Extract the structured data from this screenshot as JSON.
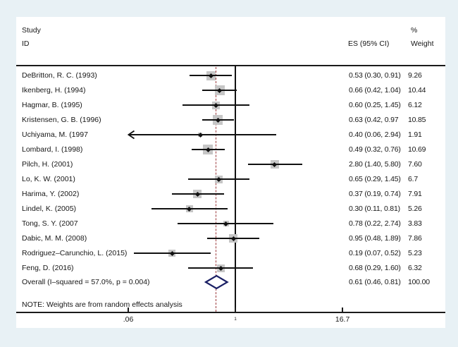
{
  "header": {
    "study_line1": "Study",
    "study_line2": "ID",
    "percent": "%",
    "es": "ES (95% CI)",
    "weight": "Weight"
  },
  "note": "NOTE: Weights are from random effects analysis",
  "colors": {
    "background": "#e8f1f5",
    "panel": "#ffffff",
    "line": "#111111",
    "overall_dashed": "#9c3a3c",
    "weight_box": "#c6c6c6",
    "diamond_stroke": "#1b2065"
  },
  "chart_data": {
    "type": "forest",
    "x_scale": "log10",
    "axis": {
      "xmin": 0.06,
      "xmax": 16.7,
      "ticks": [
        {
          "value": 0.06,
          "label": ".06",
          "small": false
        },
        {
          "value": 1,
          "label": "1",
          "small": true
        },
        {
          "value": 16.7,
          "label": "16.7",
          "small": false
        }
      ]
    },
    "null_value": 1,
    "overall_dashed_at": 0.61,
    "studies": [
      {
        "label": "DeBritton, R. C. (1993)",
        "es": 0.53,
        "ci_low": 0.3,
        "ci_high": 0.91,
        "es_text": "0.53 (0.30, 0.91)",
        "weight_text": "9.26",
        "weight": 9.26,
        "clip_low_arrow": false
      },
      {
        "label": "Ikenberg, H. (1994)",
        "es": 0.66,
        "ci_low": 0.42,
        "ci_high": 1.04,
        "es_text": "0.66 (0.42, 1.04)",
        "weight_text": "10.44",
        "weight": 10.44,
        "clip_low_arrow": false
      },
      {
        "label": "Hagmar, B. (1995)",
        "es": 0.6,
        "ci_low": 0.25,
        "ci_high": 1.45,
        "es_text": "0.60 (0.25, 1.45)",
        "weight_text": "6.12",
        "weight": 6.12,
        "clip_low_arrow": false
      },
      {
        "label": "Kristensen, G. B. (1996)",
        "es": 0.63,
        "ci_low": 0.42,
        "ci_high": 0.97,
        "es_text": "0.63 (0.42, 0.97",
        "weight_text": "10.85",
        "weight": 10.85,
        "clip_low_arrow": false
      },
      {
        "label": "Uchiyama, M. (1997",
        "es": 0.4,
        "ci_low": 0.06,
        "ci_high": 2.94,
        "es_text": "0.40 (0.06, 2.94)",
        "weight_text": "1.91",
        "weight": 1.91,
        "clip_low_arrow": true
      },
      {
        "label": "Lombard, I. (1998)",
        "es": 0.49,
        "ci_low": 0.32,
        "ci_high": 0.76,
        "es_text": "0.49 (0.32, 0.76)",
        "weight_text": "10.69",
        "weight": 10.69,
        "clip_low_arrow": false
      },
      {
        "label": "Pilch, H. (2001)",
        "es": 2.8,
        "ci_low": 1.4,
        "ci_high": 5.8,
        "es_text": "2.80 (1.40, 5.80)",
        "weight_text": "7.60",
        "weight": 7.6,
        "clip_low_arrow": false
      },
      {
        "label": "Lo, K. W. (2001)",
        "es": 0.65,
        "ci_low": 0.29,
        "ci_high": 1.45,
        "es_text": "0.65 (0.29, 1.45)",
        "weight_text": "6.7",
        "weight": 6.7,
        "clip_low_arrow": false
      },
      {
        "label": "Harima, Y. (2002)",
        "es": 0.37,
        "ci_low": 0.19,
        "ci_high": 0.74,
        "es_text": "0.37 (0.19, 0.74)",
        "weight_text": "7.91",
        "weight": 7.91,
        "clip_low_arrow": false
      },
      {
        "label": "Lindel, K. (2005)",
        "es": 0.3,
        "ci_low": 0.11,
        "ci_high": 0.81,
        "es_text": "0.30 (0.11, 0.81)",
        "weight_text": "5.26",
        "weight": 5.26,
        "clip_low_arrow": false
      },
      {
        "label": "Tong, S. Y. (2007",
        "es": 0.78,
        "ci_low": 0.22,
        "ci_high": 2.74,
        "es_text": "0.78 (0.22, 2.74)",
        "weight_text": "3.83",
        "weight": 3.83,
        "clip_low_arrow": false
      },
      {
        "label": "Dabic, M. M. (2008)",
        "es": 0.95,
        "ci_low": 0.48,
        "ci_high": 1.89,
        "es_text": "0.95 (0.48, 1.89)",
        "weight_text": "7.86",
        "weight": 7.86,
        "clip_low_arrow": false
      },
      {
        "label": "Rodriguez–Carunchio, L. (2015)",
        "es": 0.19,
        "ci_low": 0.07,
        "ci_high": 0.52,
        "es_text": "0.19 (0.07, 0.52)",
        "weight_text": "5.23",
        "weight": 5.23,
        "clip_low_arrow": false
      },
      {
        "label": "Feng, D. (2016)",
        "es": 0.68,
        "ci_low": 0.29,
        "ci_high": 1.6,
        "es_text": "0.68 (0.29, 1.60)",
        "weight_text": "6.32",
        "weight": 6.32,
        "clip_low_arrow": false
      }
    ],
    "overall": {
      "label": "Overall  (I–squared = 57.0%, p = 0.004)",
      "es": 0.61,
      "ci_low": 0.46,
      "ci_high": 0.81,
      "es_text": "0.61 (0.46, 0.81)",
      "weight_text": "100.00"
    }
  }
}
